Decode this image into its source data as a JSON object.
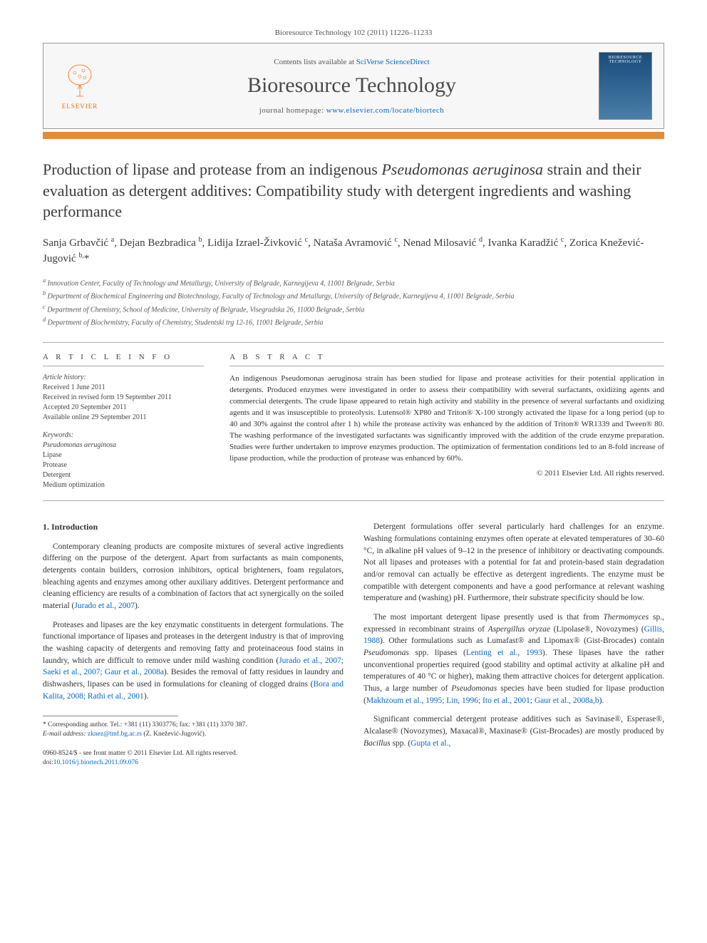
{
  "citation": "Bioresource Technology 102 (2011) 11226–11233",
  "header": {
    "publisher": "ELSEVIER",
    "contents_prefix": "Contents lists available at ",
    "contents_link": "SciVerse ScienceDirect",
    "journal": "Bioresource Technology",
    "homepage_prefix": "journal homepage: ",
    "homepage_link": "www.elsevier.com/locate/biortech",
    "cover_label": "BIORESOURCE TECHNOLOGY"
  },
  "title_part1": "Production of lipase and protease from an indigenous ",
  "title_em": "Pseudomonas aeruginosa",
  "title_part2": " strain and their evaluation as detergent additives: Compatibility study with detergent ingredients and washing performance",
  "authors_html": "Sanja Grbavčić <sup>a</sup>, Dejan Bezbradica <sup>b</sup>, Lidija Izrael-Živković <sup>c</sup>, Nataša Avramović <sup>c</sup>, Nenad Milosavić <sup>d</sup>, Ivanka Karadžić <sup>c</sup>, Zorica Knežević-Jugović <sup>b,</sup>*",
  "affiliations": [
    "a Innovation Center, Faculty of Technology and Metallurgy, University of Belgrade, Karnegijeva 4, 11001 Belgrade, Serbia",
    "b Department of Biochemical Engineering and Biotechnology, Faculty of Technology and Metallurgy, University of Belgrade, Karnegijeva 4, 11001 Belgrade, Serbia",
    "c Department of Chemistry, School of Medicine, University of Belgrade, Visegradska 26, 11000 Belgrade, Serbia",
    "d Department of Biochemistry, Faculty of Chemistry, Studentski trg 12-16, 11001 Belgrade, Serbia"
  ],
  "info": {
    "label": "A R T I C L E   I N F O",
    "history_label": "Article history:",
    "history": [
      "Received 1 June 2011",
      "Received in revised form 19 September 2011",
      "Accepted 20 September 2011",
      "Available online 29 September 2011"
    ],
    "keywords_label": "Keywords:",
    "keywords": [
      "Pseudomonas aeruginosa",
      "Lipase",
      "Protease",
      "Detergent",
      "Medium optimization"
    ]
  },
  "abstract": {
    "label": "A B S T R A C T",
    "text": "An indigenous Pseudomonas aeruginosa strain has been studied for lipase and protease activities for their potential application in detergents. Produced enzymes were investigated in order to assess their compatibility with several surfactants, oxidizing agents and commercial detergents. The crude lipase appeared to retain high activity and stability in the presence of several surfactants and oxidizing agents and it was insusceptible to proteolysis. Lutensol® XP80 and Triton® X-100 strongly activated the lipase for a long period (up to 40 and 30% against the control after 1 h) while the protease activity was enhanced by the addition of Triton® WR1339 and Tween® 80. The washing performance of the investigated surfactants was significantly improved with the addition of the crude enzyme preparation. Studies were further undertaken to improve enzymes production. The optimization of fermentation conditions led to an 8-fold increase of lipase production, while the production of protease was enhanced by 60%.",
    "copyright": "© 2011 Elsevier Ltd. All rights reserved."
  },
  "body": {
    "heading": "1. Introduction",
    "left": [
      "Contemporary cleaning products are composite mixtures of several active ingredients differing on the purpose of the detergent. Apart from surfactants as main components, detergents contain builders, corrosion inhibitors, optical brighteners, foam regulators, bleaching agents and enzymes among other auxiliary additives. Detergent performance and cleaning efficiency are results of a combination of factors that act synergically on the soiled material (Jurado et al., 2007).",
      "Proteases and lipases are the key enzymatic constituents in detergent formulations. The functional importance of lipases and proteases in the detergent industry is that of improving the washing capacity of detergents and removing fatty and proteinaceous food stains in laundry, which are difficult to remove under mild washing condition (Jurado et al., 2007; Saeki et al., 2007; Gaur et al., 2008a). Besides the removal of fatty residues in laundry and dishwashers, lipases can be used in formulations for cleaning of clogged drains (Bora and Kalita, 2008; Rathi et al., 2001)."
    ],
    "right": [
      "Detergent formulations offer several particularly hard challenges for an enzyme. Washing formulations containing enzymes often operate at elevated temperatures of 30–60 °C, in alkaline pH values of 9–12 in the presence of inhibitory or deactivating compounds. Not all lipases and proteases with a potential for fat and protein-based stain degradation and/or removal can actually be effective as detergent ingredients. The enzyme must be compatible with detergent components and have a good performance at relevant washing temperature and (washing) pH. Furthermore, their substrate specificity should be low.",
      "The most important detergent lipase presently used is that from Thermomyces sp., expressed in recombinant strains of Aspergillus oryzae (Lipolase®, Novozymes) (Gillis, 1988). Other formulations such as Lumafast® and Lipomax® (Gist-Brocades) contain Pseudomonas spp. lipases (Lenting et al., 1993). These lipases have the rather unconventional properties required (good stability and optimal activity at alkaline pH and temperatures of 40 °C or higher), making them attractive choices for detergent application. Thus, a large number of Pseudomonas species have been studied for lipase production (Makhzoum et al., 1995; Lin, 1996; Ito et al., 2001; Gaur et al., 2008a,b).",
      "Significant commercial detergent protease additives such as Savinase®, Esperase®, Alcalase® (Novozymes), Maxacal®, Maxinase® (Gist-Brocades) are mostly produced by Bacillus spp. (Gupta et al.,"
    ]
  },
  "links": {
    "jurado2007": "Jurado et al., 2007",
    "jurado_saeki_gaur": "Jurado et al., 2007; Saeki et al., 2007; Gaur et al., 2008a",
    "bora_rathi": "Bora and Kalita, 2008; Rathi et al., 2001",
    "gillis1988": "Gillis, 1988",
    "lenting1993": "Lenting et al., 1993",
    "makhzoum_etc": "Makhzoum et al., 1995; Lin, 1996; Ito et al., 2001; Gaur et al., 2008a,b",
    "gupta": "Gupta et al.,"
  },
  "footnote": {
    "corr": "* Corresponding author. Tel.: +381 (11) 3303776; fax: +381 (11) 3370 387.",
    "email_label": "E-mail address: ",
    "email": "zknez@tmf.bg.ac.rs",
    "email_suffix": " (Z. Knežević-Jugović)."
  },
  "footer": {
    "line1": "0960-8524/$ - see front matter © 2011 Elsevier Ltd. All rights reserved.",
    "doi_prefix": "doi:",
    "doi": "10.1016/j.biortech.2011.09.076"
  },
  "colors": {
    "orange_bar": "#e48b3a",
    "link": "#0066cc",
    "publisher_orange": "#ff6600",
    "cover_bg_top": "#1a4d7a",
    "text": "#333333",
    "border": "#aaaaaa"
  },
  "typography": {
    "title_fontsize": 22,
    "journal_fontsize": 30,
    "body_fontsize": 11.5,
    "abstract_fontsize": 11,
    "affil_fontsize": 10
  }
}
